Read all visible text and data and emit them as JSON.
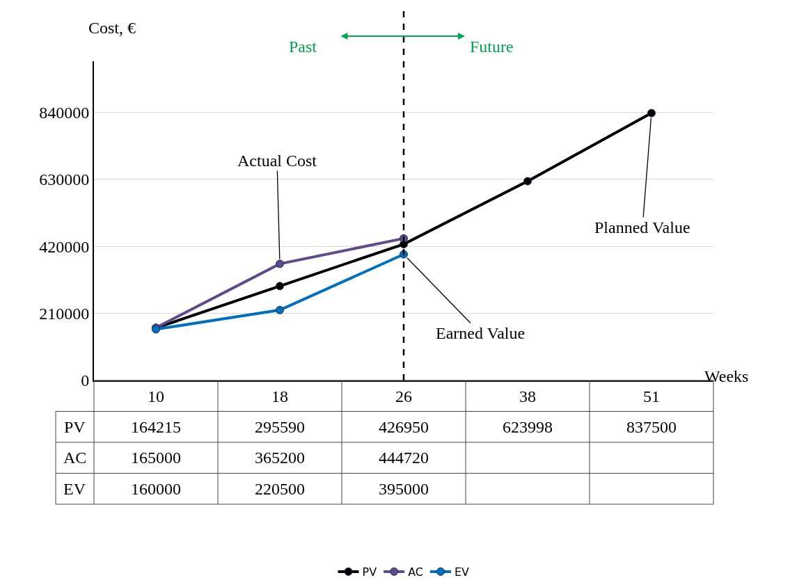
{
  "chart_data": {
    "type": "line",
    "ylabel": "Cost, €",
    "xlabel": "Weeks",
    "categories": [
      "10",
      "18",
      "26",
      "38",
      "51"
    ],
    "series": [
      {
        "name": "PV",
        "color": "#000000",
        "values": [
          164215,
          295590,
          426950,
          623998,
          837500
        ]
      },
      {
        "name": "AC",
        "color": "#5f4b8b",
        "values": [
          165000,
          365200,
          444720,
          null,
          null
        ]
      },
      {
        "name": "EV",
        "color": "#0070c0",
        "values": [
          160000,
          220500,
          395000,
          null,
          null
        ]
      }
    ],
    "ylim": [
      0,
      1000000
    ],
    "yticks": [
      0,
      210000,
      420000,
      630000,
      840000
    ],
    "grid": "y",
    "marker": "circle",
    "line_style": "solid",
    "legend": "bottom",
    "data_labels": true,
    "ref_lines": [
      {
        "axis": "x",
        "value": "26",
        "color": "#000000",
        "line_style": "dashed"
      }
    ],
    "annotations": [
      "Past",
      "Future",
      {
        "text": "Actual Cost",
        "x": "18",
        "y": 365200
      },
      {
        "text": "Earned Value",
        "x": "26",
        "y": 395000
      },
      {
        "text": "Planned Value",
        "x": "51",
        "y": 837500
      }
    ]
  }
}
